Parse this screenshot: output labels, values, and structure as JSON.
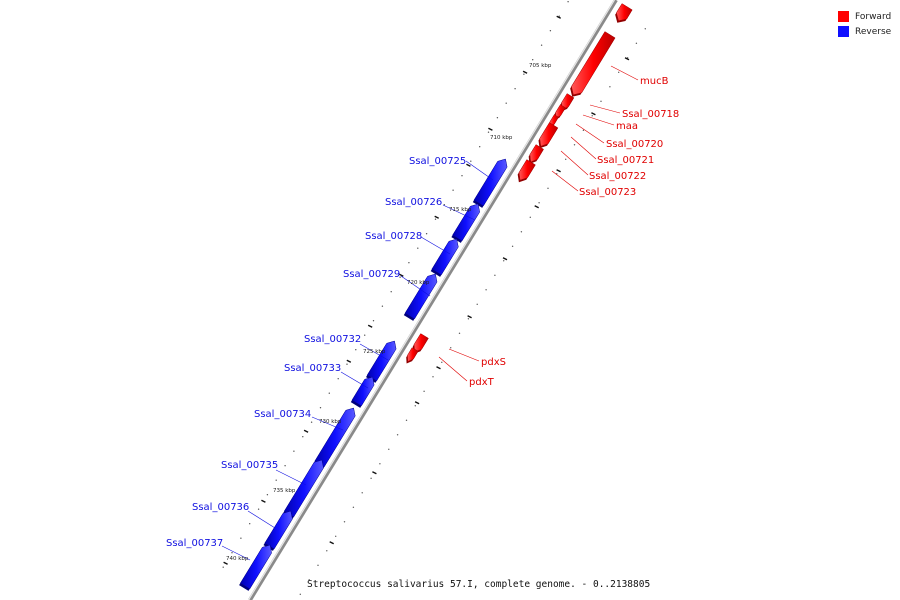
{
  "legend": {
    "forward": {
      "label": "Forward",
      "color": "#ff0000"
    },
    "reverse": {
      "label": "Reverse",
      "color": "#1010ff"
    }
  },
  "caption": "Streptococcus salivarius 57.I, complete genome. - 0..2138805",
  "scale": {
    "unit": "kbp",
    "labels": [
      "705 kbp",
      "710 kbp",
      "715 kbp",
      "720 kbp",
      "725 kbp",
      "730 kbp",
      "735 kbp",
      "740 kbp"
    ]
  },
  "genes": {
    "forward": [
      {
        "name": "",
        "label": ""
      },
      {
        "name": "mucB",
        "label": "mucB"
      },
      {
        "name": "Ssal_00718",
        "label": "Ssal_00718"
      },
      {
        "name": "maa",
        "label": "maa"
      },
      {
        "name": "Ssal_00720",
        "label": "Ssal_00720"
      },
      {
        "name": "Ssal_00721",
        "label": "Ssal_00721"
      },
      {
        "name": "Ssal_00722",
        "label": "Ssal_00722"
      },
      {
        "name": "Ssal_00723",
        "label": "Ssal_00723"
      },
      {
        "name": "pdxS",
        "label": "pdxS"
      },
      {
        "name": "pdxT",
        "label": "pdxT"
      }
    ],
    "reverse": [
      {
        "name": "Ssal_00725",
        "label": "Ssal_00725"
      },
      {
        "name": "Ssal_00726",
        "label": "Ssal_00726"
      },
      {
        "name": "Ssal_00728",
        "label": "Ssal_00728"
      },
      {
        "name": "Ssal_00729",
        "label": "Ssal_00729"
      },
      {
        "name": "Ssal_00732",
        "label": "Ssal_00732"
      },
      {
        "name": "Ssal_00733",
        "label": "Ssal_00733"
      },
      {
        "name": "Ssal_00734",
        "label": "Ssal_00734"
      },
      {
        "name": "Ssal_00735",
        "label": "Ssal_00735"
      },
      {
        "name": "Ssal_00736",
        "label": "Ssal_00736"
      },
      {
        "name": "Ssal_00737",
        "label": "Ssal_00737"
      }
    ]
  }
}
